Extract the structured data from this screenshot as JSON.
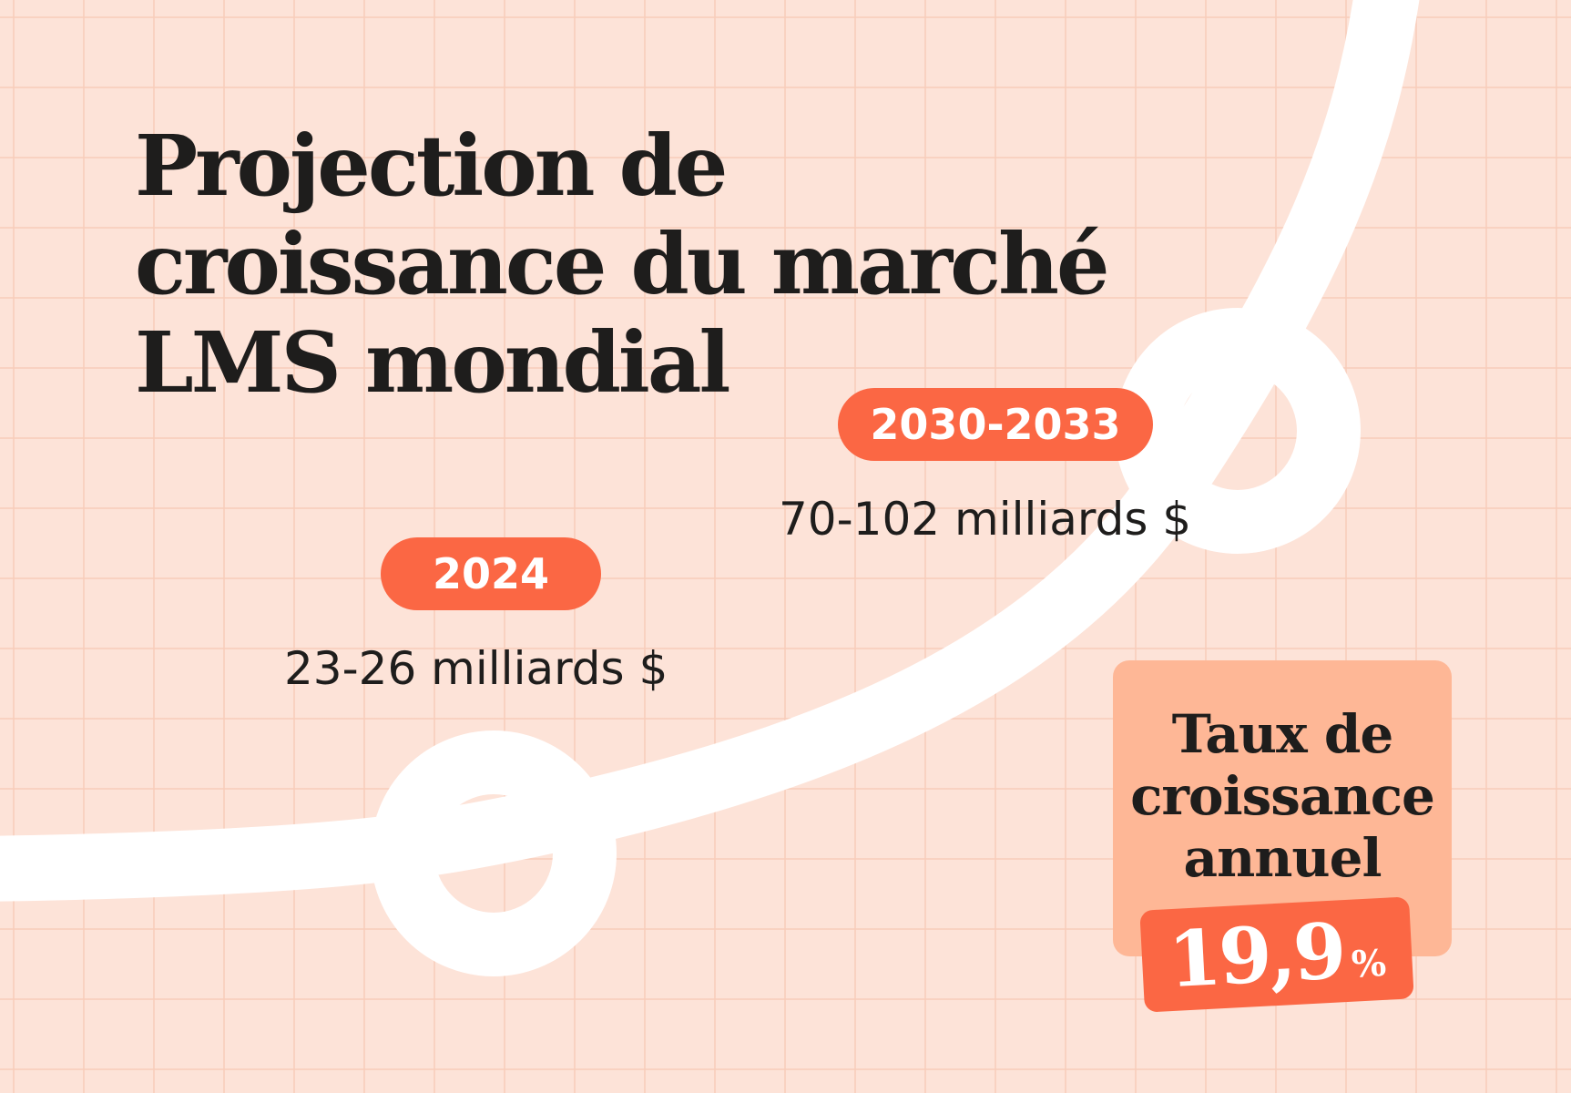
{
  "title_lines": [
    "Projection de",
    "croissance du marché",
    "LMS mondial"
  ],
  "milestones": [
    {
      "year": "2024",
      "amount": "23-26 milliards $"
    },
    {
      "year": "2030-2033",
      "amount": "70-102 milliards $"
    }
  ],
  "growth": {
    "label_lines": [
      "Taux de",
      "croissance",
      "annuel"
    ],
    "value": "19,9",
    "unit": "%"
  },
  "colors": {
    "background": "#fde3d8",
    "grid": "#f8ccba",
    "accent": "#fb6744",
    "card": "#feb796",
    "curve": "#ffffff",
    "text": "#1e1d1c"
  }
}
